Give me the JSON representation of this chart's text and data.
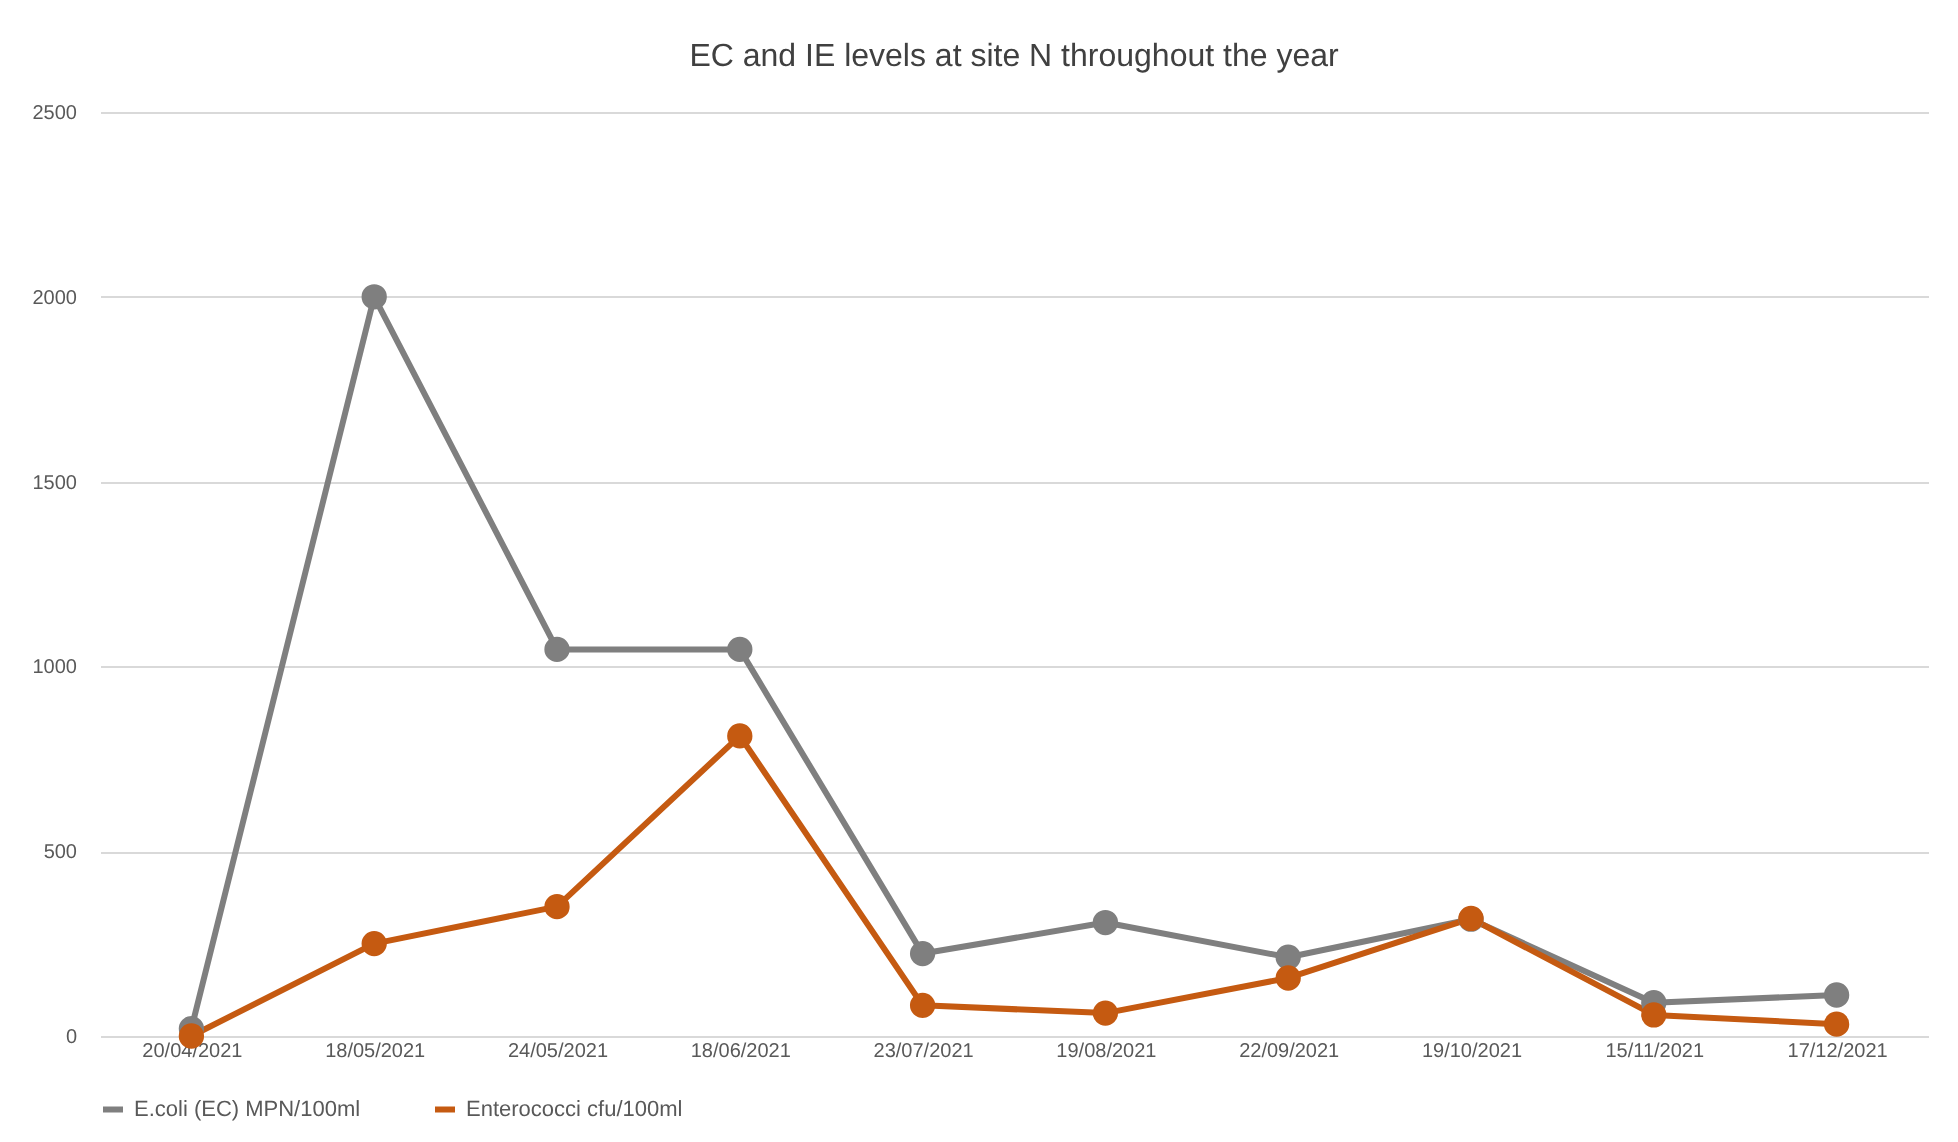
{
  "chart_data": {
    "type": "line",
    "title": "EC and IE levels at site N throughout the year",
    "categories": [
      "20/04/2021",
      "18/05/2021",
      "24/05/2021",
      "18/06/2021",
      "23/07/2021",
      "19/08/2021",
      "22/09/2021",
      "19/10/2021",
      "15/11/2021",
      "17/12/2021"
    ],
    "series": [
      {
        "name": "E.coli (EC) MPN/100ml",
        "color": "#7f7f7f",
        "values": [
          20,
          2000,
          1046,
          1046,
          223,
          307,
          213,
          316,
          90,
          111
        ]
      },
      {
        "name": "Enterococci cfu/100ml",
        "color": "#c55a11",
        "values": [
          0,
          250,
          350,
          812,
          83,
          62,
          157,
          318,
          57,
          32
        ]
      }
    ],
    "ylim": [
      0,
      2500
    ],
    "yticks": [
      0,
      500,
      1000,
      1500,
      2000,
      2500
    ],
    "grid": "y",
    "legend": "bottom",
    "marker": "circle",
    "line_style": "solid"
  }
}
